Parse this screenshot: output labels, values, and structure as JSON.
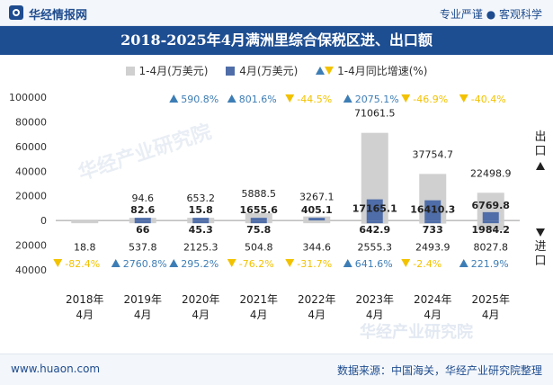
{
  "header": {
    "brand": "华经情报网",
    "tagline": "专业严谨 ● 客观科学"
  },
  "footer": {
    "website": "www.huaon.com",
    "source": "数据来源：中国海关，华经产业研究院整理"
  },
  "watermark": "华经产业研究院",
  "colors": {
    "title_bg": "#1e4e92",
    "cumulative_bar": "#d0d0d0",
    "monthly_bar": "#4f6da8",
    "growth_up": "#3d7db5",
    "growth_down": "#f2c200"
  },
  "chart_data": {
    "type": "bar",
    "title": "2018-2025年4月满洲里综合保税区进、出口额",
    "legend": {
      "cumulative": "1-4月(万美元)",
      "monthly": "4月(万美元)",
      "growth": "1-4月同比增速(%)"
    },
    "side_labels": {
      "export": "出口",
      "import": "进口"
    },
    "categories": [
      "2018年\n4月",
      "2019年\n4月",
      "2020年\n4月",
      "2021年\n4月",
      "2022年\n4月",
      "2023年\n4月",
      "2024年\n4月",
      "2025年\n4月"
    ],
    "ylim": [
      -40000,
      100000
    ],
    "yticks": [
      -40000,
      -20000,
      0,
      20000,
      40000,
      60000,
      80000,
      100000
    ],
    "ytick_labels": [
      "40000",
      "20000",
      "0",
      "20000",
      "40000",
      "60000",
      "80000",
      "100000"
    ],
    "export": {
      "cumulative": [
        null,
        94.6,
        653.2,
        5888.5,
        3267.1,
        71061.5,
        37754.7,
        22498.9
      ],
      "cumulative_labels": [
        "",
        "94.6",
        "653.2",
        "5888.5",
        "3267.1",
        "71061.5",
        "37754.7",
        "22498.9"
      ],
      "monthly": [
        null,
        82.6,
        15.8,
        1655.6,
        405.1,
        17165.1,
        16410.3,
        6769.8
      ],
      "monthly_labels": [
        "",
        "82.6",
        "15.8",
        "1655.6",
        "405.1",
        "17165.1",
        "16410.3",
        "6769.8"
      ],
      "growth": [
        null,
        null,
        590.8,
        801.6,
        -44.5,
        2075.1,
        -46.9,
        -40.4
      ],
      "growth_labels": [
        "",
        "",
        "590.8%",
        "801.6%",
        "-44.5%",
        "2075.1%",
        "-46.9%",
        "-40.4%"
      ]
    },
    "import": {
      "cumulative": [
        18.8,
        537.8,
        2125.3,
        504.8,
        344.6,
        2555.3,
        2493.9,
        8027.8
      ],
      "cumulative_labels": [
        "18.8",
        "537.8",
        "2125.3",
        "504.8",
        "344.6",
        "2555.3",
        "2493.9",
        "8027.8"
      ],
      "monthly": [
        null,
        66,
        45.3,
        75.8,
        null,
        642.9,
        733,
        1984.2
      ],
      "monthly_labels": [
        "",
        "66",
        "45.3",
        "75.8",
        "",
        "642.9",
        "733",
        "1984.2"
      ],
      "growth": [
        -82.4,
        2760.8,
        295.2,
        -76.2,
        -31.7,
        641.6,
        -2.4,
        221.9
      ],
      "growth_labels": [
        "-82.4%",
        "2760.8%",
        "295.2%",
        "-76.2%",
        "-31.7%",
        "641.6%",
        "-2.4%",
        "221.9%"
      ]
    }
  }
}
